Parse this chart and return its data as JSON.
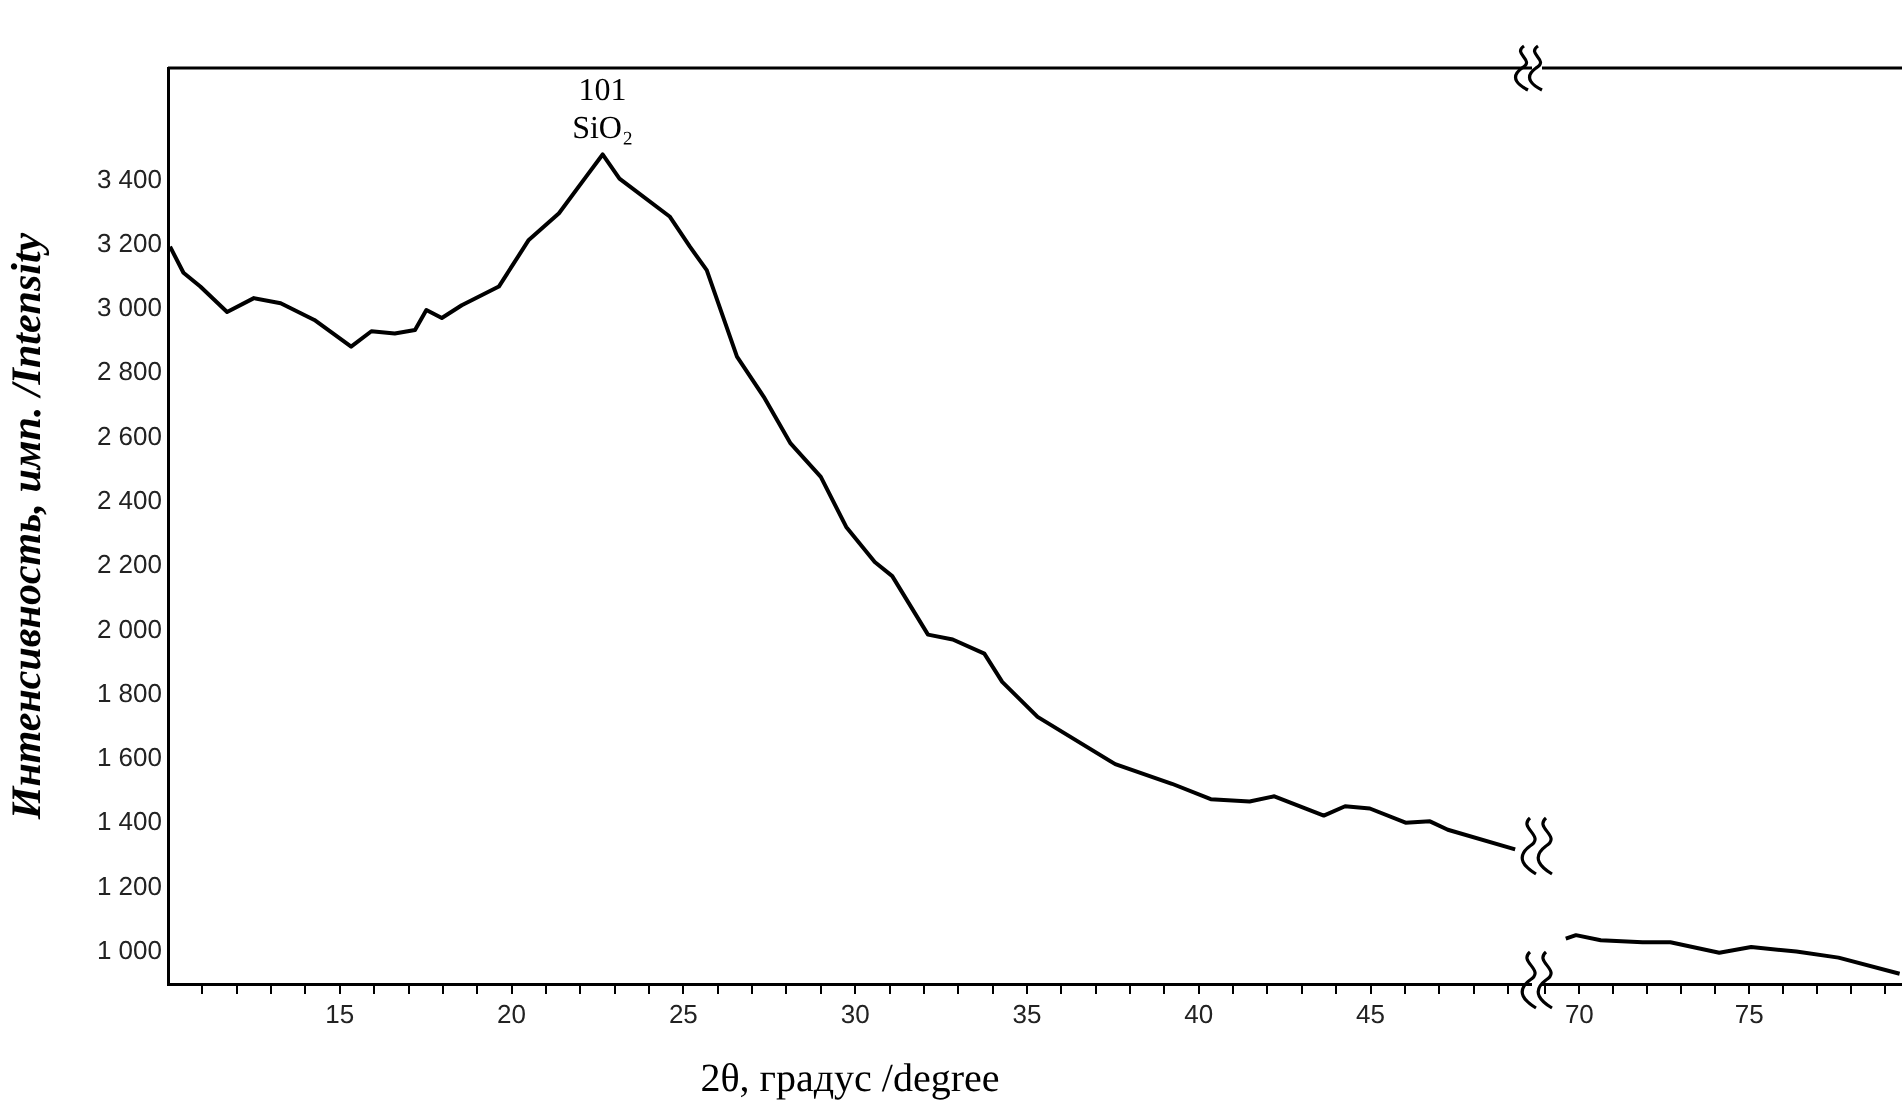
{
  "chart_data": [
    {
      "type": "line",
      "xlabel": "2θ, градус /degree",
      "ylabel": "Интенсивность, имп. /Intensity",
      "grid": false,
      "legend": false,
      "marker": "none",
      "line_style": "solid",
      "xlim": [
        10,
        49.7
      ],
      "ylim": [
        900,
        3750
      ],
      "xticks": [
        {
          "value": 11,
          "label": null
        },
        {
          "value": 12,
          "label": null
        },
        {
          "value": 13,
          "label": null
        },
        {
          "value": 14,
          "label": null
        },
        15,
        {
          "value": 16,
          "label": null
        },
        {
          "value": 17,
          "label": null
        },
        {
          "value": 18,
          "label": null
        },
        {
          "value": 19,
          "label": null
        },
        20,
        {
          "value": 21,
          "label": null
        },
        {
          "value": 22,
          "label": null
        },
        {
          "value": 23,
          "label": null
        },
        {
          "value": 24,
          "label": null
        },
        25,
        {
          "value": 26,
          "label": null
        },
        {
          "value": 27,
          "label": null
        },
        {
          "value": 28,
          "label": null
        },
        {
          "value": 29,
          "label": null
        },
        30,
        {
          "value": 31,
          "label": null
        },
        {
          "value": 32,
          "label": null
        },
        {
          "value": 33,
          "label": null
        },
        {
          "value": 34,
          "label": null
        },
        35,
        {
          "value": 36,
          "label": null
        },
        {
          "value": 37,
          "label": null
        },
        {
          "value": 38,
          "label": null
        },
        {
          "value": 39,
          "label": null
        },
        40,
        {
          "value": 41,
          "label": null
        },
        {
          "value": 42,
          "label": null
        },
        {
          "value": 43,
          "label": null
        },
        {
          "value": 44,
          "label": null
        },
        45,
        {
          "value": 46,
          "label": null
        },
        {
          "value": 47,
          "label": null
        },
        {
          "value": 48,
          "label": null
        },
        {
          "value": 49,
          "label": null
        }
      ],
      "yticks": [
        {
          "value": 1000,
          "label": "1 000"
        },
        {
          "value": 1200,
          "label": "1 200"
        },
        {
          "value": 1400,
          "label": "1 400"
        },
        {
          "value": 1600,
          "label": "1 600"
        },
        {
          "value": 1800,
          "label": "1 800"
        },
        {
          "value": 2000,
          "label": "2 000"
        },
        {
          "value": 2200,
          "label": "2 200"
        },
        {
          "value": 2400,
          "label": "2 400"
        },
        {
          "value": 2600,
          "label": "2 600"
        },
        {
          "value": 2800,
          "label": "2 800"
        },
        {
          "value": 3000,
          "label": "3 000"
        },
        {
          "value": 3200,
          "label": "3 200"
        },
        {
          "value": 3400,
          "label": "3 400"
        }
      ],
      "annotations": [
        {
          "text": "101\nSiO₂",
          "x": 22.65,
          "y": 3481
        }
      ],
      "series": [
        {
          "color": "#000000",
          "x": [
            10.06,
            10.45,
            10.94,
            11.72,
            12.5,
            13.28,
            14.26,
            15.33,
            15.92,
            16.6,
            17.19,
            17.52,
            17.97,
            18.55,
            19.63,
            20.5,
            21.38,
            22.17,
            22.65,
            23.14,
            24.6,
            25.19,
            25.68,
            26.56,
            27.34,
            28.12,
            29.0,
            29.74,
            30.57,
            31.08,
            32.12,
            32.84,
            33.76,
            34.28,
            35.31,
            37.57,
            39.22,
            40.35,
            41.48,
            42.2,
            43.64,
            44.26,
            44.98,
            46.02,
            46.73,
            47.25,
            49.21
          ],
          "values": [
            3194,
            3113,
            3070,
            2991,
            3034,
            3018,
            2966,
            2883,
            2931,
            2924,
            2935,
            2997,
            2972,
            3012,
            3070,
            3215,
            3298,
            3412,
            3481,
            3406,
            3288,
            3194,
            3121,
            2852,
            2727,
            2582,
            2478,
            2322,
            2213,
            2169,
            1987,
            1972,
            1928,
            1840,
            1731,
            1584,
            1523,
            1475,
            1468,
            1484,
            1424,
            1453,
            1446,
            1402,
            1406,
            1380,
            1319
          ]
        }
      ]
    },
    {
      "type": "line",
      "grid": false,
      "legend": false,
      "marker": "none",
      "line_style": "solid",
      "tick_labels": "x",
      "xlim": [
        68.9,
        79.5
      ],
      "ylim": [
        900,
        3750
      ],
      "xticks": [
        {
          "value": 69,
          "label": null
        },
        70,
        {
          "value": 71,
          "label": null
        },
        {
          "value": 72,
          "label": null
        },
        {
          "value": 73,
          "label": null
        },
        {
          "value": 74,
          "label": null
        },
        75,
        {
          "value": 76,
          "label": null
        },
        {
          "value": 77,
          "label": null
        },
        {
          "value": 78,
          "label": null
        },
        {
          "value": 79,
          "label": null
        }
      ],
      "series": [
        {
          "color": "#000000",
          "x": [
            69.6,
            69.9,
            70.63,
            71.86,
            72.68,
            74.12,
            75.06,
            76.39,
            77.63,
            79.43
          ],
          "values": [
            1041,
            1052,
            1036,
            1030,
            1030,
            997,
            1015,
            1001,
            982,
            932
          ]
        }
      ]
    }
  ]
}
